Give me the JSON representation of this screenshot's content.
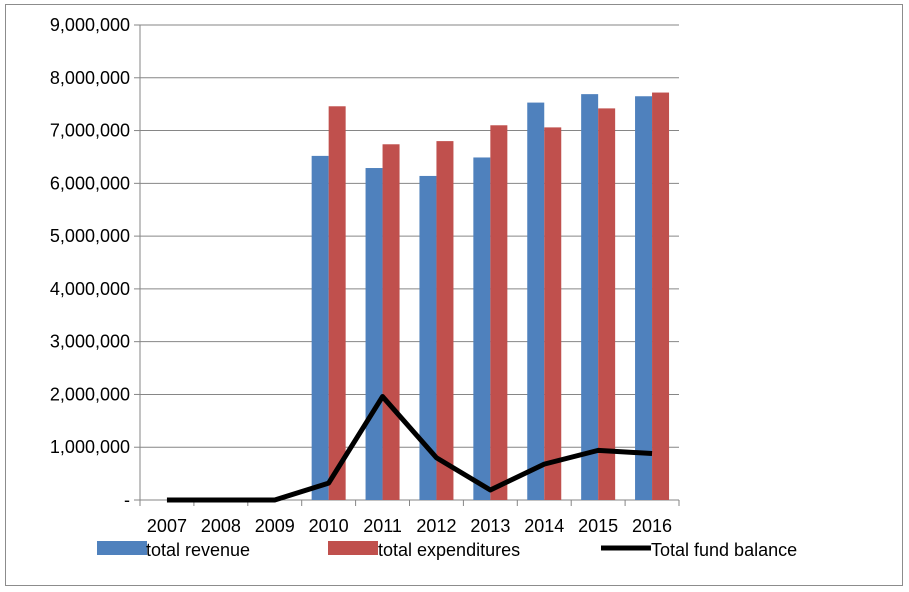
{
  "chart_data": {
    "type": "bar",
    "categories": [
      "2007",
      "2008",
      "2009",
      "2010",
      "2011",
      "2012",
      "2013",
      "2014",
      "2015",
      "2016"
    ],
    "series": [
      {
        "name": "total revenue",
        "type": "bar",
        "color": "#4f81bd",
        "values": [
          0,
          0,
          0,
          6520000,
          6290000,
          6140000,
          6490000,
          7530000,
          7690000,
          7650000
        ]
      },
      {
        "name": "total expenditures",
        "type": "bar",
        "color": "#c0504d",
        "values": [
          0,
          0,
          0,
          7460000,
          6740000,
          6800000,
          7100000,
          7060000,
          7420000,
          7720000
        ]
      },
      {
        "name": "Total fund balance",
        "type": "line",
        "color": "#000000",
        "values": [
          0,
          0,
          0,
          320000,
          1960000,
          800000,
          190000,
          680000,
          940000,
          880000
        ]
      }
    ],
    "y_ticks": [
      "-",
      "1,000,000",
      "2,000,000",
      "3,000,000",
      "4,000,000",
      "5,000,000",
      "6,000,000",
      "7,000,000",
      "8,000,000",
      "9,000,000"
    ],
    "ylim": [
      0,
      9000000
    ],
    "grid": true,
    "legend_position": "bottom"
  }
}
